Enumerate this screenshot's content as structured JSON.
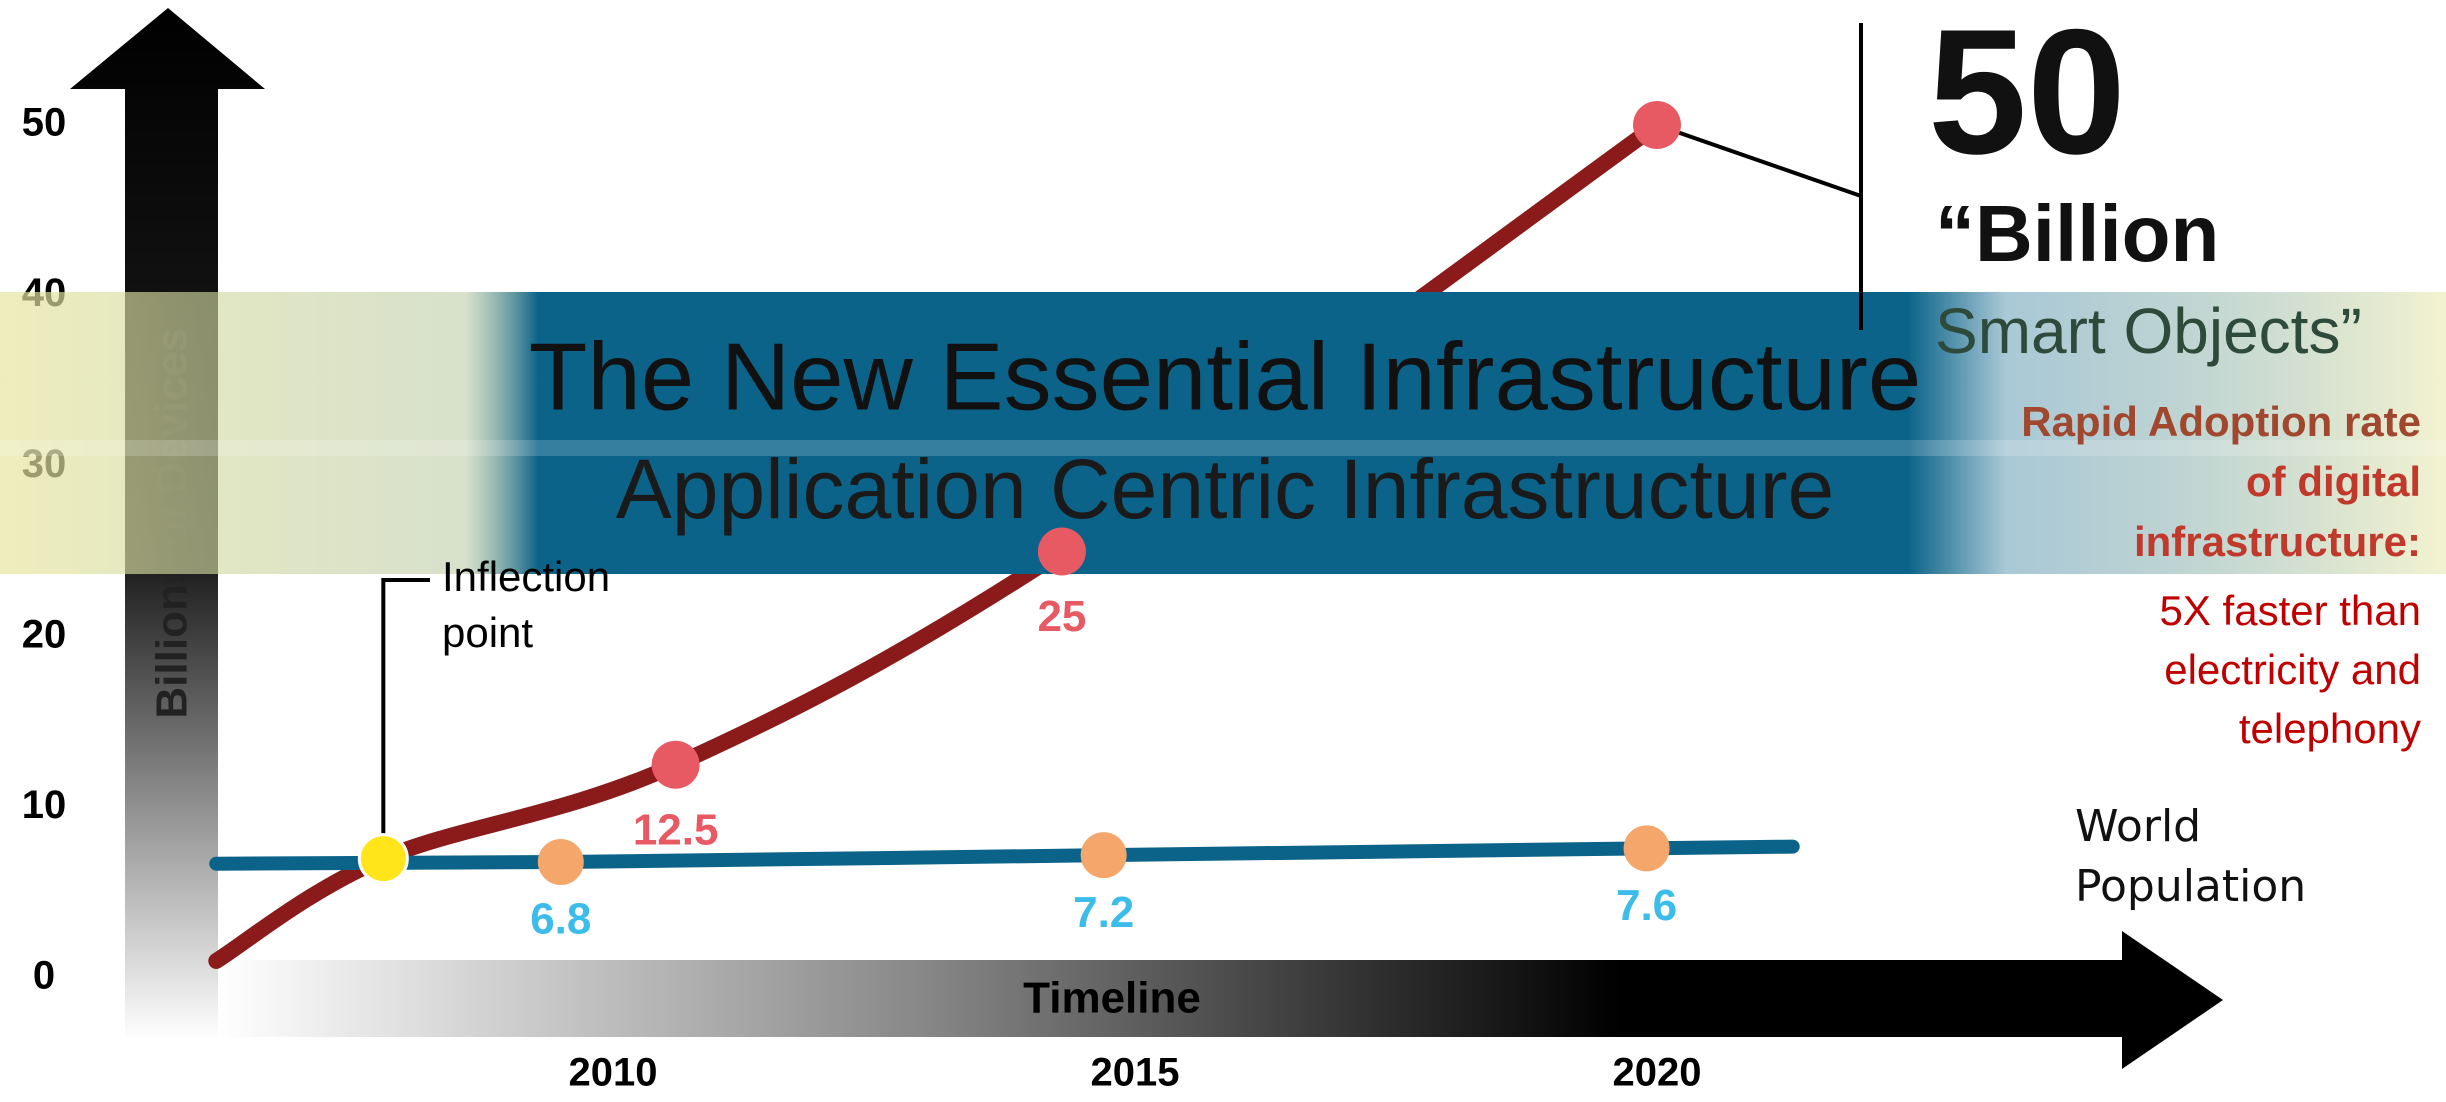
{
  "chart_data": {
    "type": "line",
    "title": "The New Essential Infrastructure",
    "subtitle": "Application Centric Infrastructure",
    "y_label": "Billions of Devices",
    "x_label": "Timeline",
    "xlim": [
      2005,
      2025
    ],
    "xticks": [
      2010,
      2015,
      2020
    ],
    "ylim": [
      0,
      50
    ],
    "yticks": [
      0,
      10,
      20,
      30,
      40,
      50
    ],
    "series": [
      {
        "color": "#8b1a1a",
        "marker_color": "#e85a63",
        "x": [
          2006.2,
          2007.8,
          2010.6,
          2014.3,
          2020
        ],
        "values": [
          1,
          7,
          12.5,
          25,
          50
        ],
        "labeled": [
          2,
          3
        ]
      },
      {
        "name": "World Population",
        "color": "#0b6389",
        "marker_color": "#f5a66a",
        "label_color": "#3cbcea",
        "x": [
          2006.2,
          2009.5,
          2014.7,
          2019.9,
          2021.3
        ],
        "values": [
          6.7,
          6.8,
          7.2,
          7.6,
          7.7
        ],
        "labeled": [
          1,
          2,
          3
        ]
      }
    ],
    "inflection": {
      "x": 2007.8,
      "value": 7,
      "color": "#ffe51a",
      "lines": [
        "Inflection",
        "point"
      ]
    },
    "headline_lines": [
      "“Billion",
      "Smart Objects”"
    ],
    "rate_lines": [
      "Rapid Adoption rate",
      "of digital",
      "infrastructure:"
    ],
    "faster_lines": [
      "5X faster than",
      "electricity and",
      "telephony"
    ]
  }
}
